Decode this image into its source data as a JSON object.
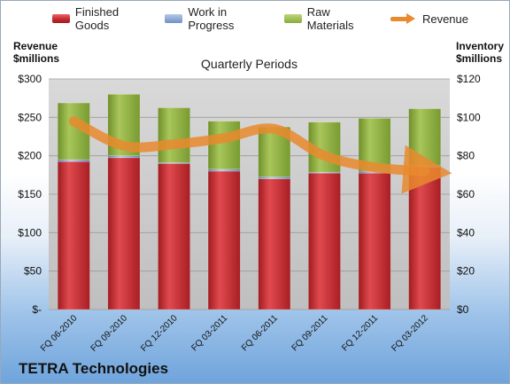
{
  "left_axis_title": [
    "Revenue",
    "$millions"
  ],
  "right_axis_title": [
    "Inventory",
    "$millions"
  ],
  "company": "TETRA Technologies",
  "chart_data": {
    "type": "bar",
    "subtitle": "Quarterly Periods",
    "categories": [
      "FQ 06-2010",
      "FQ 09-2010",
      "FQ 12-2010",
      "FQ 03-2011",
      "FQ 06-2011",
      "FQ 09-2011",
      "FQ 12-2011",
      "FQ 03-2012"
    ],
    "series": [
      {
        "name": "Finished Goods",
        "axis": "right",
        "stacked": true,
        "color": "#c1272d",
        "values": [
          77,
          79,
          76,
          72,
          68,
          71,
          71,
          74
        ]
      },
      {
        "name": "Work in Progress",
        "axis": "right",
        "stacked": true,
        "color": "#6f8fc4",
        "values": [
          1,
          1,
          0.5,
          1,
          1,
          0.5,
          1,
          1
        ]
      },
      {
        "name": "Raw Materials",
        "axis": "right",
        "stacked": true,
        "color": "#8bab3b",
        "values": [
          29.5,
          32,
          28.5,
          25,
          26,
          26,
          27.5,
          29.5
        ]
      },
      {
        "name": "Revenue",
        "axis": "left",
        "type": "line",
        "color": "#e98a2e",
        "values": [
          245,
          213,
          215,
          223,
          235,
          200,
          185,
          180
        ]
      }
    ],
    "left_axis": {
      "ylim": [
        0,
        300
      ],
      "ticks": [
        0,
        50,
        100,
        150,
        200,
        250,
        300
      ],
      "tick_labels": [
        "$-",
        "$50",
        "$100",
        "$150",
        "$200",
        "$250",
        "$300"
      ]
    },
    "right_axis": {
      "ylim": [
        0,
        120
      ],
      "ticks": [
        0,
        20,
        40,
        60,
        80,
        100,
        120
      ],
      "tick_labels": [
        "$0",
        "$20",
        "$40",
        "$60",
        "$80",
        "$100",
        "$120"
      ]
    },
    "grid": true,
    "legend_position": "top"
  }
}
